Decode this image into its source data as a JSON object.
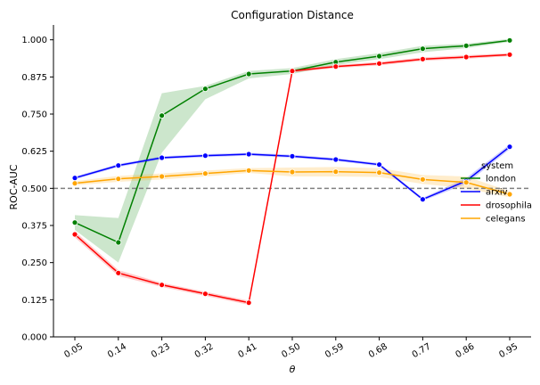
{
  "chart_data": {
    "type": "line",
    "title": "Configuration Distance",
    "xlabel": "θ",
    "ylabel": "ROC-AUC",
    "categories": [
      "0.05",
      "0.14",
      "0.23",
      "0.32",
      "0.41",
      "0.50",
      "0.59",
      "0.68",
      "0.77",
      "0.86",
      "0.95"
    ],
    "ylim": [
      0,
      1.05
    ],
    "yticks": [
      "0.000",
      "0.125",
      "0.250",
      "0.375",
      "0.500",
      "0.625",
      "0.750",
      "0.875",
      "1.000"
    ],
    "reference_line": {
      "y": 0.5,
      "style": "dashed",
      "color": "#808080"
    },
    "legend": {
      "title": "system",
      "placement": "right"
    },
    "series": [
      {
        "name": "london",
        "color": "#008000",
        "values": [
          0.385,
          0.318,
          0.745,
          0.835,
          0.885,
          0.895,
          0.925,
          0.945,
          0.97,
          0.98,
          0.998
        ],
        "band_low": [
          0.36,
          0.25,
          0.62,
          0.8,
          0.87,
          0.885,
          0.915,
          0.935,
          0.958,
          0.972,
          0.993
        ],
        "band_high": [
          0.41,
          0.4,
          0.82,
          0.845,
          0.895,
          0.905,
          0.935,
          0.955,
          0.98,
          0.987,
          1.003
        ]
      },
      {
        "name": "arxiv",
        "color": "#0000ff",
        "values": [
          0.535,
          0.577,
          0.603,
          0.61,
          0.615,
          0.608,
          0.597,
          0.58,
          0.463,
          0.525,
          0.64
        ],
        "band_low": [
          0.53,
          0.572,
          0.598,
          0.605,
          0.61,
          0.603,
          0.592,
          0.575,
          0.458,
          0.515,
          0.632
        ],
        "band_high": [
          0.54,
          0.582,
          0.608,
          0.615,
          0.62,
          0.613,
          0.602,
          0.585,
          0.468,
          0.535,
          0.648
        ]
      },
      {
        "name": "drosophila",
        "color": "#ff0000",
        "values": [
          0.345,
          0.215,
          0.175,
          0.145,
          0.115,
          0.895,
          0.91,
          0.92,
          0.935,
          0.942,
          0.95
        ],
        "band_low": [
          0.335,
          0.205,
          0.168,
          0.138,
          0.108,
          0.89,
          0.905,
          0.914,
          0.929,
          0.936,
          0.945
        ],
        "band_high": [
          0.355,
          0.225,
          0.182,
          0.152,
          0.122,
          0.9,
          0.915,
          0.926,
          0.941,
          0.948,
          0.955
        ]
      },
      {
        "name": "celegans",
        "color": "#ffa500",
        "values": [
          0.517,
          0.532,
          0.54,
          0.55,
          0.56,
          0.555,
          0.556,
          0.553,
          0.53,
          0.52,
          0.48
        ],
        "band_low": [
          0.51,
          0.522,
          0.53,
          0.54,
          0.552,
          0.54,
          0.54,
          0.538,
          0.515,
          0.5,
          0.47
        ],
        "band_high": [
          0.524,
          0.542,
          0.55,
          0.56,
          0.568,
          0.57,
          0.572,
          0.568,
          0.545,
          0.54,
          0.49
        ]
      }
    ]
  }
}
